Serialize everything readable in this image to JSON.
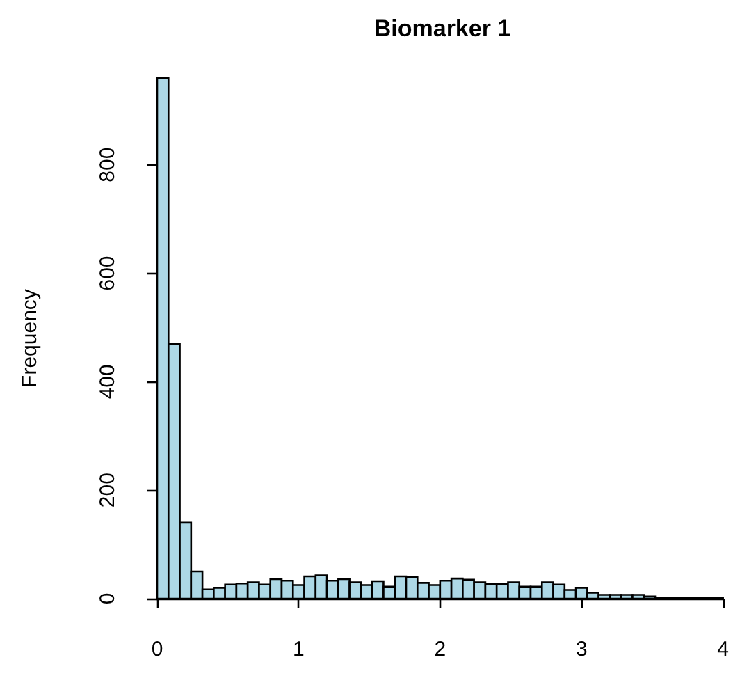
{
  "chart_data": {
    "type": "histogram",
    "title": "Biomarker 1",
    "ylabel": "Frequency",
    "bins": [
      0,
      0.08,
      0.16,
      0.24,
      0.32,
      0.4,
      0.48,
      0.56,
      0.64,
      0.72,
      0.8,
      0.88,
      0.96,
      1.04,
      1.12,
      1.2,
      1.28,
      1.36,
      1.44,
      1.52,
      1.6,
      1.68,
      1.76,
      1.84,
      1.92,
      2,
      2.08,
      2.16,
      2.24,
      2.32,
      2.4,
      2.48,
      2.56,
      2.64,
      2.72,
      2.8,
      2.88,
      2.96,
      3.04,
      3.12,
      3.2,
      3.28,
      3.36,
      3.44,
      3.52,
      3.6,
      3.68,
      3.76,
      3.84,
      3.92,
      4
    ],
    "values": [
      960,
      470,
      140,
      50,
      17,
      20,
      26,
      28,
      30,
      26,
      36,
      33,
      25,
      41,
      43,
      33,
      36,
      30,
      25,
      32,
      22,
      41,
      40,
      29,
      25,
      33,
      37,
      35,
      30,
      27,
      27,
      30,
      22,
      22,
      30,
      26,
      16,
      20,
      11,
      7,
      7,
      7,
      7,
      4,
      2,
      1,
      1,
      1,
      1,
      1
    ],
    "color": "#add8e6",
    "xlim": [
      0,
      4
    ],
    "xticks": [
      0,
      1,
      2,
      3,
      4
    ],
    "ylim": [
      0,
      960
    ],
    "yticks": [
      0,
      200,
      400,
      600,
      800
    ],
    "grid": false
  }
}
